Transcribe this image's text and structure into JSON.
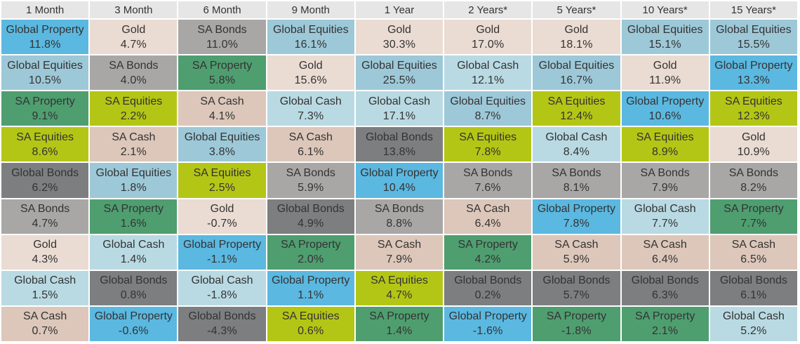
{
  "chart_data": {
    "type": "table",
    "columns": [
      "1 Month",
      "3 Month",
      "6 Month",
      "9 Month",
      "1 Year",
      "2 Years*",
      "5 Years*",
      "10 Years*",
      "15 Years*"
    ],
    "asset_colors": {
      "Global Property": "#5bb8e0",
      "Global Equities": "#9dc8d8",
      "Global Cash": "#b9dae3",
      "Global Bonds": "#7d7e80",
      "SA Property": "#4f9e70",
      "SA Equities": "#b4c615",
      "SA Cash": "#dcc7ba",
      "SA Bonds": "#a9a7a6",
      "Gold": "#eadcd3"
    },
    "cells": [
      [
        {
          "name": "Global Property",
          "value": "11.8%"
        },
        {
          "name": "Global Equities",
          "value": "10.5%"
        },
        {
          "name": "SA Property",
          "value": "9.1%"
        },
        {
          "name": "SA Equities",
          "value": "8.6%"
        },
        {
          "name": "Global Bonds",
          "value": "6.2%"
        },
        {
          "name": "SA Bonds",
          "value": "4.7%"
        },
        {
          "name": "Gold",
          "value": "4.3%"
        },
        {
          "name": "Global Cash",
          "value": "1.5%"
        },
        {
          "name": "SA Cash",
          "value": "0.7%"
        }
      ],
      [
        {
          "name": "Gold",
          "value": "4.7%"
        },
        {
          "name": "SA Bonds",
          "value": "4.0%"
        },
        {
          "name": "SA Equities",
          "value": "2.2%"
        },
        {
          "name": "SA Cash",
          "value": "2.1%"
        },
        {
          "name": "Global Equities",
          "value": "1.8%"
        },
        {
          "name": "SA Property",
          "value": "1.6%"
        },
        {
          "name": "Global Cash",
          "value": "1.4%"
        },
        {
          "name": "Global Bonds",
          "value": "0.8%"
        },
        {
          "name": "Global Property",
          "value": "-0.6%"
        }
      ],
      [
        {
          "name": "SA Bonds",
          "value": "11.0%"
        },
        {
          "name": "SA Property",
          "value": "5.8%"
        },
        {
          "name": "SA Cash",
          "value": "4.1%"
        },
        {
          "name": "Global Equities",
          "value": "3.8%"
        },
        {
          "name": "SA Equities",
          "value": "2.5%"
        },
        {
          "name": "Gold",
          "value": "-0.7%"
        },
        {
          "name": "Global Property",
          "value": "-1.1%"
        },
        {
          "name": "Global Cash",
          "value": "-1.8%"
        },
        {
          "name": "Global Bonds",
          "value": "-4.3%"
        }
      ],
      [
        {
          "name": "Global Equities",
          "value": "16.1%"
        },
        {
          "name": "Gold",
          "value": "15.6%"
        },
        {
          "name": "Global Cash",
          "value": "7.3%"
        },
        {
          "name": "SA Cash",
          "value": "6.1%"
        },
        {
          "name": "SA Bonds",
          "value": "5.9%"
        },
        {
          "name": "Global Bonds",
          "value": "4.9%"
        },
        {
          "name": "SA Property",
          "value": "2.0%"
        },
        {
          "name": "Global Property",
          "value": "1.1%"
        },
        {
          "name": "SA Equities",
          "value": "0.6%"
        }
      ],
      [
        {
          "name": "Gold",
          "value": "30.3%"
        },
        {
          "name": "Global Equities",
          "value": "25.5%"
        },
        {
          "name": "Global Cash",
          "value": "17.1%"
        },
        {
          "name": "Global Bonds",
          "value": "13.8%"
        },
        {
          "name": "Global Property",
          "value": "10.4%"
        },
        {
          "name": "SA Bonds",
          "value": "8.8%"
        },
        {
          "name": "SA Cash",
          "value": "7.9%"
        },
        {
          "name": "SA Equities",
          "value": "4.7%"
        },
        {
          "name": "SA Property",
          "value": "1.4%"
        }
      ],
      [
        {
          "name": "Gold",
          "value": "17.0%"
        },
        {
          "name": "Global Cash",
          "value": "12.1%"
        },
        {
          "name": "Global Equities",
          "value": "8.7%"
        },
        {
          "name": "SA Equities",
          "value": "7.8%"
        },
        {
          "name": "SA Bonds",
          "value": "7.6%"
        },
        {
          "name": "SA Cash",
          "value": "6.4%"
        },
        {
          "name": "SA Property",
          "value": "4.2%"
        },
        {
          "name": "Global Bonds",
          "value": "0.2%"
        },
        {
          "name": "Global Property",
          "value": "-1.6%"
        }
      ],
      [
        {
          "name": "Gold",
          "value": "18.1%"
        },
        {
          "name": "Global Equities",
          "value": "16.7%"
        },
        {
          "name": "SA Equities",
          "value": "12.4%"
        },
        {
          "name": "Global Cash",
          "value": "8.4%"
        },
        {
          "name": "SA Bonds",
          "value": "8.1%"
        },
        {
          "name": "Global Property",
          "value": "7.8%"
        },
        {
          "name": "SA Cash",
          "value": "5.9%"
        },
        {
          "name": "Global Bonds",
          "value": "5.7%"
        },
        {
          "name": "SA Property",
          "value": "-1.8%"
        }
      ],
      [
        {
          "name": "Global Equities",
          "value": "15.1%"
        },
        {
          "name": "Gold",
          "value": "11.9%"
        },
        {
          "name": "Global Property",
          "value": "10.6%"
        },
        {
          "name": "SA Equities",
          "value": "8.9%"
        },
        {
          "name": "SA Bonds",
          "value": "7.9%"
        },
        {
          "name": "Global Cash",
          "value": "7.7%"
        },
        {
          "name": "SA Cash",
          "value": "6.4%"
        },
        {
          "name": "Global Bonds",
          "value": "6.3%"
        },
        {
          "name": "SA Property",
          "value": "2.1%"
        }
      ],
      [
        {
          "name": "Global Equities",
          "value": "15.5%"
        },
        {
          "name": "Global Property",
          "value": "13.3%"
        },
        {
          "name": "SA Equities",
          "value": "12.3%"
        },
        {
          "name": "Gold",
          "value": "10.9%"
        },
        {
          "name": "SA Bonds",
          "value": "8.2%"
        },
        {
          "name": "SA Property",
          "value": "7.7%"
        },
        {
          "name": "SA Cash",
          "value": "6.5%"
        },
        {
          "name": "Global Bonds",
          "value": "6.1%"
        },
        {
          "name": "Global Cash",
          "value": "5.2%"
        }
      ]
    ]
  }
}
